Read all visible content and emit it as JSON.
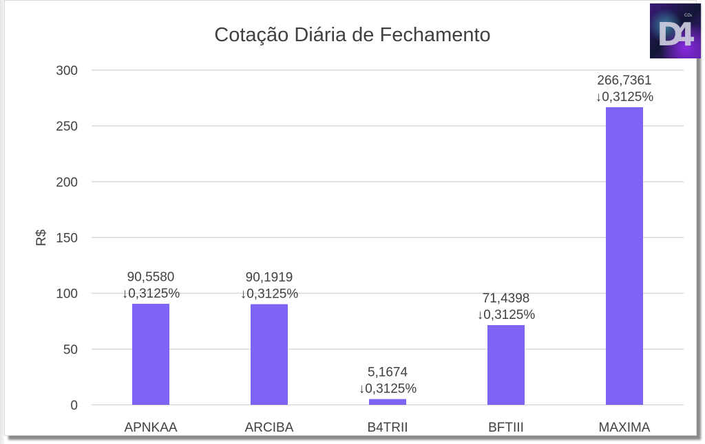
{
  "chart_data": {
    "type": "bar",
    "title": "Cotação Diária de Fechamento",
    "xlabel": "",
    "ylabel": "R$",
    "ylim": [
      0,
      300
    ],
    "yticks": [
      0,
      50,
      100,
      150,
      200,
      250,
      300
    ],
    "grid": true,
    "categories": [
      "APNKAA",
      "ARCIBA",
      "B4TRII",
      "BFTIII",
      "MAXIMA"
    ],
    "values": [
      90.558,
      90.1919,
      5.1674,
      71.4398,
      266.7361
    ],
    "value_labels": [
      "90,5580",
      "90,1919",
      "5,1674",
      "71,4398",
      "266,7361"
    ],
    "change_labels": [
      "↓0,3125%",
      "↓0,3125%",
      "↓0,3125%",
      "↓0,3125%",
      "↓0,3125%"
    ],
    "bar_color": "#7f63f4"
  },
  "logo": {
    "text": "D4",
    "sub": "CO2"
  }
}
